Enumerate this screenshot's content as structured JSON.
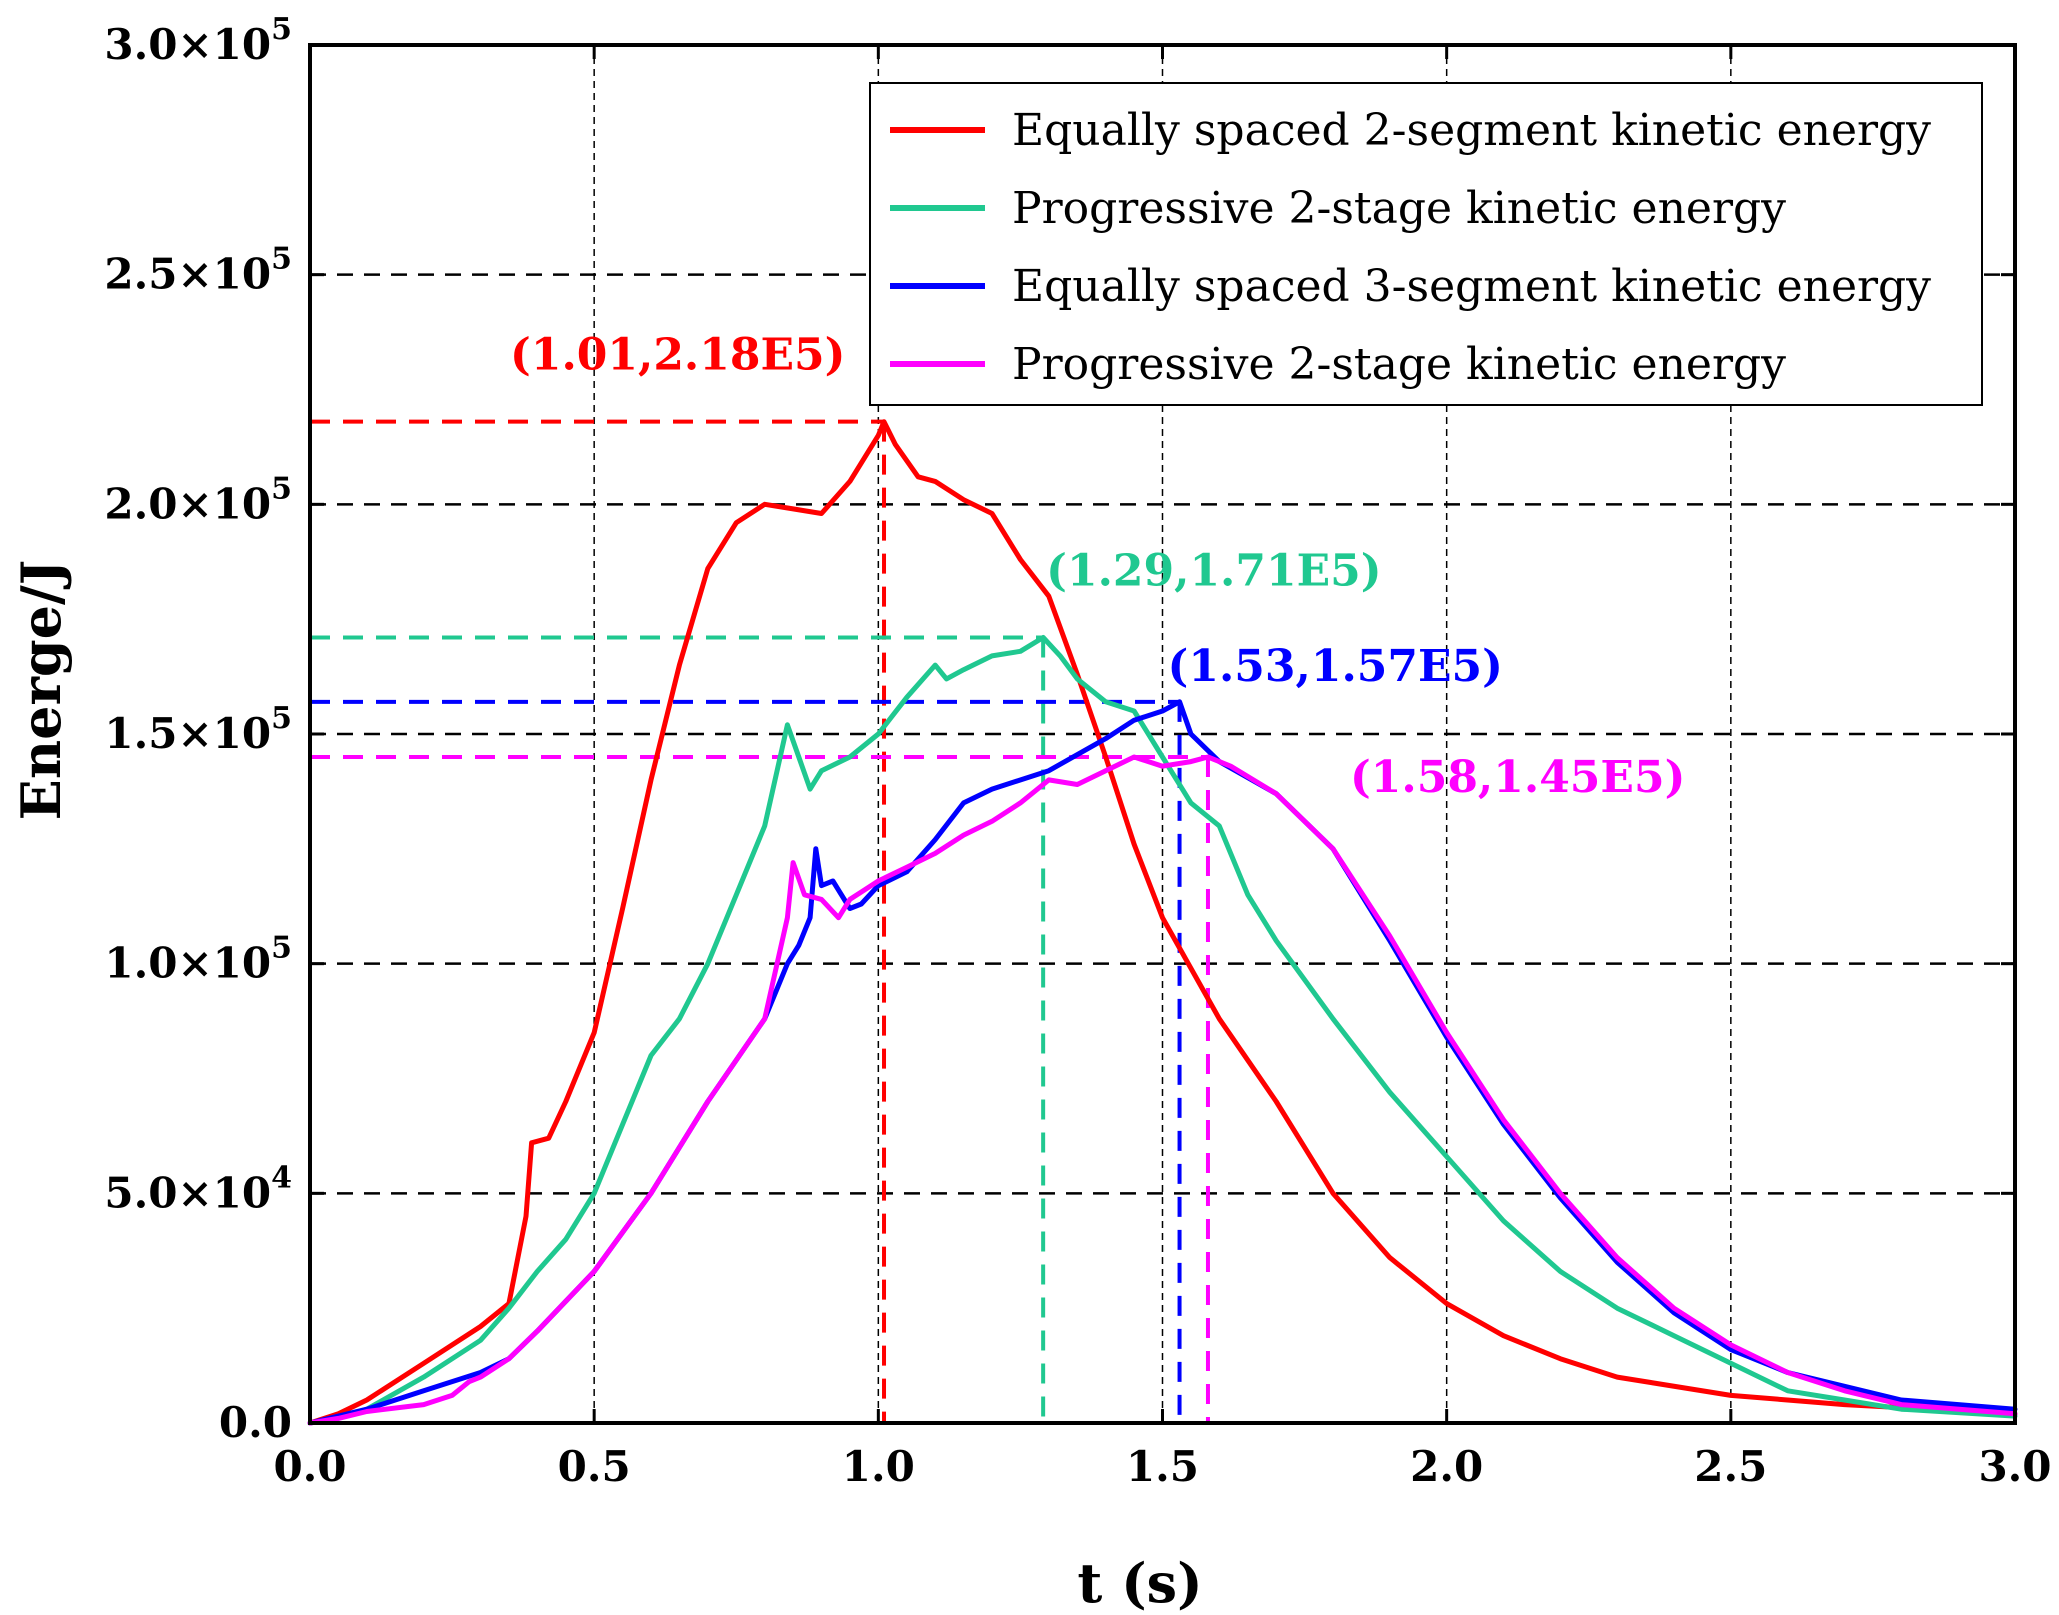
{
  "chart_data": {
    "type": "line",
    "title": "",
    "xlabel": "t (s)",
    "ylabel": "Energe/J",
    "xlim": [
      0,
      3
    ],
    "ylim": [
      0,
      300000
    ],
    "xticks": [
      {
        "value": 0.0,
        "label": "0.0"
      },
      {
        "value": 0.5,
        "label": "0.5"
      },
      {
        "value": 1.0,
        "label": "1.0"
      },
      {
        "value": 1.5,
        "label": "1.5"
      },
      {
        "value": 2.0,
        "label": "2.0"
      },
      {
        "value": 2.5,
        "label": "2.5"
      },
      {
        "value": 3.0,
        "label": "3.0"
      }
    ],
    "yticks": [
      {
        "value": 0,
        "mant": "0.0",
        "exp": ""
      },
      {
        "value": 50000,
        "mant": "5.0×10",
        "exp": "4"
      },
      {
        "value": 100000,
        "mant": "1.0×10",
        "exp": "5"
      },
      {
        "value": 150000,
        "mant": "1.5×10",
        "exp": "5"
      },
      {
        "value": 200000,
        "mant": "2.0×10",
        "exp": "5"
      },
      {
        "value": 250000,
        "mant": "2.5×10",
        "exp": "5"
      },
      {
        "value": 300000,
        "mant": "3.0×10",
        "exp": "5"
      }
    ],
    "grid": true,
    "legend_position": "top-right",
    "series": [
      {
        "name": "Equally spaced 2-segment kinetic energy",
        "color": "#ff0000",
        "x": [
          0,
          0.05,
          0.1,
          0.2,
          0.3,
          0.35,
          0.38,
          0.39,
          0.42,
          0.45,
          0.5,
          0.55,
          0.6,
          0.65,
          0.7,
          0.75,
          0.8,
          0.85,
          0.9,
          0.95,
          1.0,
          1.01,
          1.03,
          1.07,
          1.1,
          1.15,
          1.2,
          1.25,
          1.3,
          1.35,
          1.4,
          1.45,
          1.5,
          1.6,
          1.7,
          1.8,
          1.9,
          2.0,
          2.1,
          2.2,
          2.3,
          2.5,
          2.7,
          3.0
        ],
        "y": [
          0,
          2000,
          5000,
          13000,
          21000,
          26000,
          45000,
          61000,
          62000,
          70000,
          85000,
          112000,
          140000,
          165000,
          186000,
          196000,
          200000,
          199000,
          198000,
          205000,
          215000,
          218000,
          213000,
          206000,
          205000,
          201000,
          198000,
          188000,
          180000,
          163000,
          145000,
          126000,
          110000,
          88000,
          70000,
          50000,
          36000,
          26000,
          19000,
          14000,
          10000,
          6000,
          4000,
          2000
        ]
      },
      {
        "name": "Progressive 2-stage kinetic energy",
        "color": "#20c890",
        "x": [
          0,
          0.05,
          0.1,
          0.2,
          0.3,
          0.35,
          0.4,
          0.45,
          0.5,
          0.55,
          0.6,
          0.65,
          0.7,
          0.75,
          0.8,
          0.84,
          0.86,
          0.88,
          0.9,
          0.95,
          1.0,
          1.05,
          1.1,
          1.12,
          1.15,
          1.2,
          1.25,
          1.29,
          1.32,
          1.35,
          1.4,
          1.45,
          1.5,
          1.55,
          1.6,
          1.65,
          1.7,
          1.8,
          1.9,
          2.0,
          2.1,
          2.2,
          2.3,
          2.4,
          2.5,
          2.6,
          2.7,
          2.8,
          3.0
        ],
        "y": [
          0,
          1000,
          3000,
          10000,
          18000,
          25000,
          33000,
          40000,
          50000,
          65000,
          80000,
          88000,
          100000,
          115000,
          130000,
          152000,
          145000,
          138000,
          142000,
          145000,
          150000,
          158000,
          165000,
          162000,
          164000,
          167000,
          168000,
          171000,
          167000,
          162000,
          157000,
          155000,
          145000,
          135000,
          130000,
          115000,
          105000,
          88000,
          72000,
          58000,
          44000,
          33000,
          25000,
          19000,
          13000,
          7000,
          5000,
          3000,
          1500
        ]
      },
      {
        "name": "Equally spaced 3-segment kinetic energy",
        "color": "#0000ff",
        "x": [
          0,
          0.05,
          0.1,
          0.2,
          0.3,
          0.35,
          0.4,
          0.5,
          0.6,
          0.7,
          0.8,
          0.84,
          0.86,
          0.88,
          0.89,
          0.9,
          0.92,
          0.95,
          0.97,
          1.0,
          1.05,
          1.1,
          1.15,
          1.2,
          1.3,
          1.4,
          1.45,
          1.5,
          1.53,
          1.55,
          1.6,
          1.7,
          1.8,
          1.9,
          2.0,
          2.1,
          2.2,
          2.3,
          2.4,
          2.5,
          2.6,
          2.7,
          2.8,
          3.0
        ],
        "y": [
          0,
          1500,
          3000,
          7000,
          11000,
          14000,
          20000,
          33000,
          50000,
          70000,
          88000,
          100000,
          104000,
          110000,
          125000,
          117000,
          118000,
          112000,
          113000,
          117000,
          120000,
          127000,
          135000,
          138000,
          142000,
          149000,
          153000,
          155000,
          157000,
          150000,
          144000,
          137000,
          125000,
          105000,
          84000,
          65000,
          49000,
          35000,
          24000,
          16000,
          11000,
          8000,
          5000,
          3000
        ]
      },
      {
        "name": "Progressive 2-stage kinetic energy",
        "color": "#ff00ff",
        "x": [
          0,
          0.05,
          0.1,
          0.2,
          0.25,
          0.28,
          0.3,
          0.35,
          0.4,
          0.5,
          0.6,
          0.7,
          0.8,
          0.84,
          0.85,
          0.87,
          0.9,
          0.93,
          0.95,
          1.0,
          1.05,
          1.1,
          1.15,
          1.2,
          1.25,
          1.3,
          1.35,
          1.4,
          1.45,
          1.5,
          1.55,
          1.58,
          1.62,
          1.7,
          1.8,
          1.9,
          2.0,
          2.1,
          2.2,
          2.3,
          2.4,
          2.5,
          2.6,
          2.7,
          2.8,
          3.0
        ],
        "y": [
          0,
          1000,
          2500,
          4000,
          6000,
          9000,
          10000,
          14000,
          20000,
          33000,
          50000,
          70000,
          88000,
          110000,
          122000,
          115000,
          114000,
          110000,
          114000,
          118000,
          121000,
          124000,
          128000,
          131000,
          135000,
          140000,
          139000,
          142000,
          145000,
          143000,
          144000,
          145000,
          143000,
          137000,
          125000,
          106000,
          85000,
          66000,
          50000,
          36000,
          25000,
          17000,
          11000,
          7000,
          4000,
          2000
        ]
      }
    ],
    "annotations": [
      {
        "text": "(1.01,2.18E5)",
        "x": 1.01,
        "y": 218000,
        "color": "#ff0000"
      },
      {
        "text": "(1.29,1.71E5)",
        "x": 1.29,
        "y": 171000,
        "color": "#20c890"
      },
      {
        "text": "(1.53,1.57E5)",
        "x": 1.53,
        "y": 157000,
        "color": "#0000ff"
      },
      {
        "text": "(1.58,1.45E5)",
        "x": 1.58,
        "y": 145000,
        "color": "#ff00ff"
      }
    ]
  }
}
